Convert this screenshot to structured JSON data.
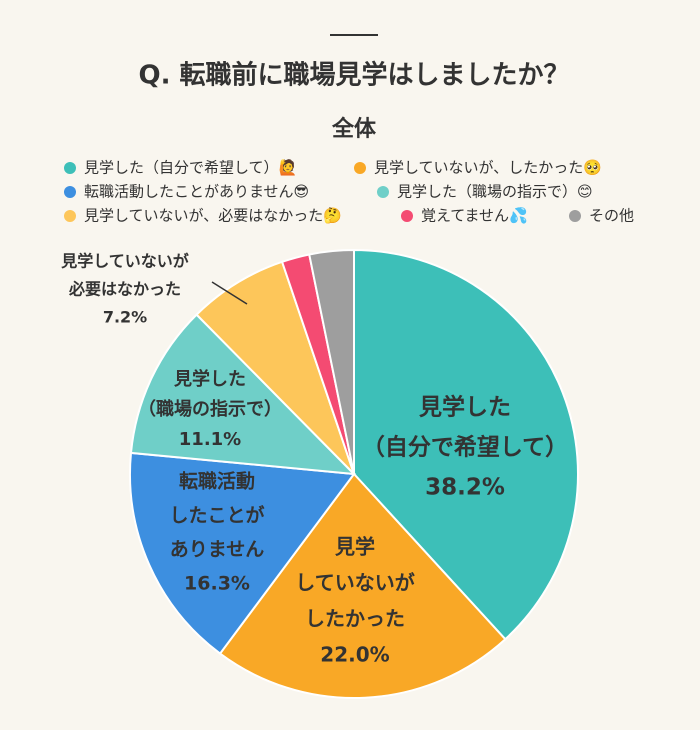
{
  "chart_data": {
    "type": "pie",
    "title": "Q. 転職前に職場見学はしましたか？",
    "subtitle": "全体",
    "categories": [
      "見学した（自分で希望して）🙋",
      "見学していないが、したかった🥺",
      "転職活動したことがありません😎",
      "見学した（職場の指示で）😊",
      "見学していないが、必要はなかった🤔",
      "覚えてません💦",
      "その他"
    ],
    "values": [
      38.2,
      22.0,
      16.3,
      11.1,
      7.2,
      2.0,
      3.2
    ],
    "value_labels": [
      "38.2%",
      "22.0%",
      "16.3%",
      "11.1%",
      "7.2%",
      null,
      null
    ],
    "slice_labels": [
      [
        "見学した",
        "（自分で希望して）"
      ],
      [
        "見学",
        "していないが",
        "したかった"
      ],
      [
        "転職活動",
        "したことが",
        "ありません"
      ],
      [
        "見学した",
        "（職場の指示で）"
      ],
      [
        "見学していないが",
        "必要はなかった"
      ],
      null,
      null
    ],
    "colors": [
      "#3dbfb8",
      "#f9a826",
      "#3d8fe0",
      "#6fcfc8",
      "#fdc65a",
      "#f44b72",
      "#9e9e9e"
    ],
    "legend": "top"
  }
}
